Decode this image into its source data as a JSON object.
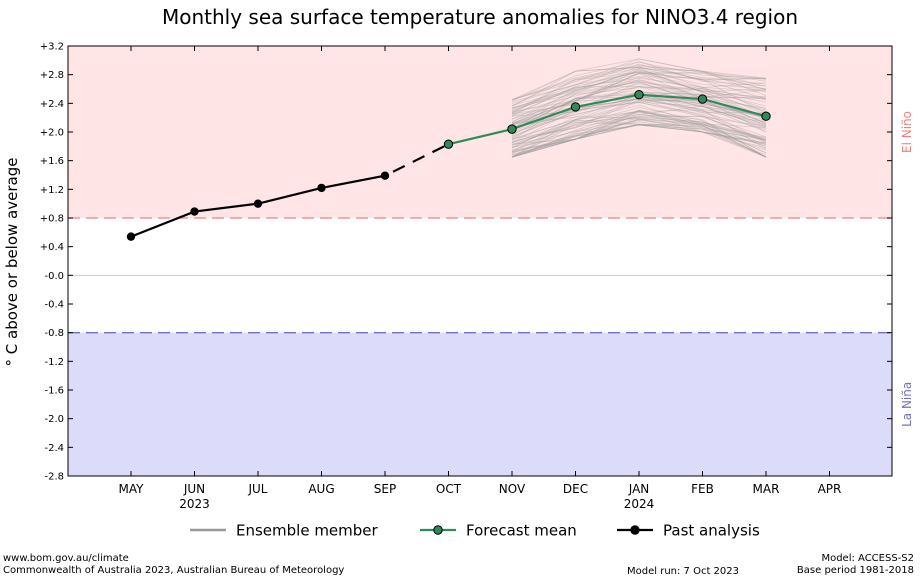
{
  "chart_data": {
    "type": "line",
    "title": "Monthly sea surface temperature anomalies for NINO3.4 region",
    "ylabel": "° C above or below average",
    "ylim": [
      -2.8,
      3.2
    ],
    "yticks": [
      "+3.2",
      "+2.8",
      "+2.4",
      "+2.0",
      "+1.6",
      "+1.2",
      "+0.8",
      "+0.4",
      "-0.0",
      "-0.4",
      "-0.8",
      "-1.2",
      "-1.6",
      "-2.0",
      "-2.4",
      "-2.8"
    ],
    "ytick_values": [
      3.2,
      2.8,
      2.4,
      2.0,
      1.6,
      1.2,
      0.8,
      0.4,
      0.0,
      -0.4,
      -0.8,
      -1.2,
      -1.6,
      -2.0,
      -2.4,
      -2.8
    ],
    "categories": [
      "MAY",
      "JUN",
      "JUL",
      "AUG",
      "SEP",
      "OCT",
      "NOV",
      "DEC",
      "JAN",
      "FEB",
      "MAR",
      "APR"
    ],
    "year_labels": [
      {
        "category": "JUN",
        "text": "2023"
      },
      {
        "category": "JAN",
        "text": "2024"
      }
    ],
    "thresholds": [
      {
        "value": 0.8,
        "label": "El Niño",
        "color": "#f08080",
        "fill": "#ffe5e5"
      },
      {
        "value": -0.8,
        "label": "La Niña",
        "color": "#7070c8",
        "fill": "#dcdcfa"
      }
    ],
    "series": [
      {
        "name": "Past analysis",
        "color": "#000000",
        "points": [
          [
            "MAY",
            0.54
          ],
          [
            "JUN",
            0.89
          ],
          [
            "JUL",
            1.0
          ],
          [
            "AUG",
            1.22
          ],
          [
            "SEP",
            1.39
          ]
        ]
      },
      {
        "name": "Forecast mean",
        "color": "#2e8b57",
        "points": [
          [
            "OCT",
            1.83
          ],
          [
            "NOV",
            2.04
          ],
          [
            "DEC",
            2.35
          ],
          [
            "JAN",
            2.52
          ],
          [
            "FEB",
            2.46
          ],
          [
            "MAR",
            2.22
          ]
        ]
      }
    ],
    "ensemble": {
      "name": "Ensemble member",
      "color": "#999999",
      "range": [
        "NOV",
        "MAR"
      ],
      "spread_low": [
        1.65,
        1.9,
        2.1,
        2.0,
        1.65
      ],
      "spread_high": [
        2.45,
        2.85,
        3.02,
        2.85,
        2.75
      ]
    },
    "legend": [
      "Ensemble member",
      "Forecast mean",
      "Past analysis"
    ],
    "legend_position": "bottom"
  },
  "footer": {
    "url": "www.bom.gov.au/climate",
    "copyright": "Commonwealth of Australia 2023, Australian Bureau of Meteorology",
    "model_run": "Model run: 7 Oct 2023",
    "model": "Model: ACCESS-S2",
    "base_period": "Base period 1981-2018"
  }
}
